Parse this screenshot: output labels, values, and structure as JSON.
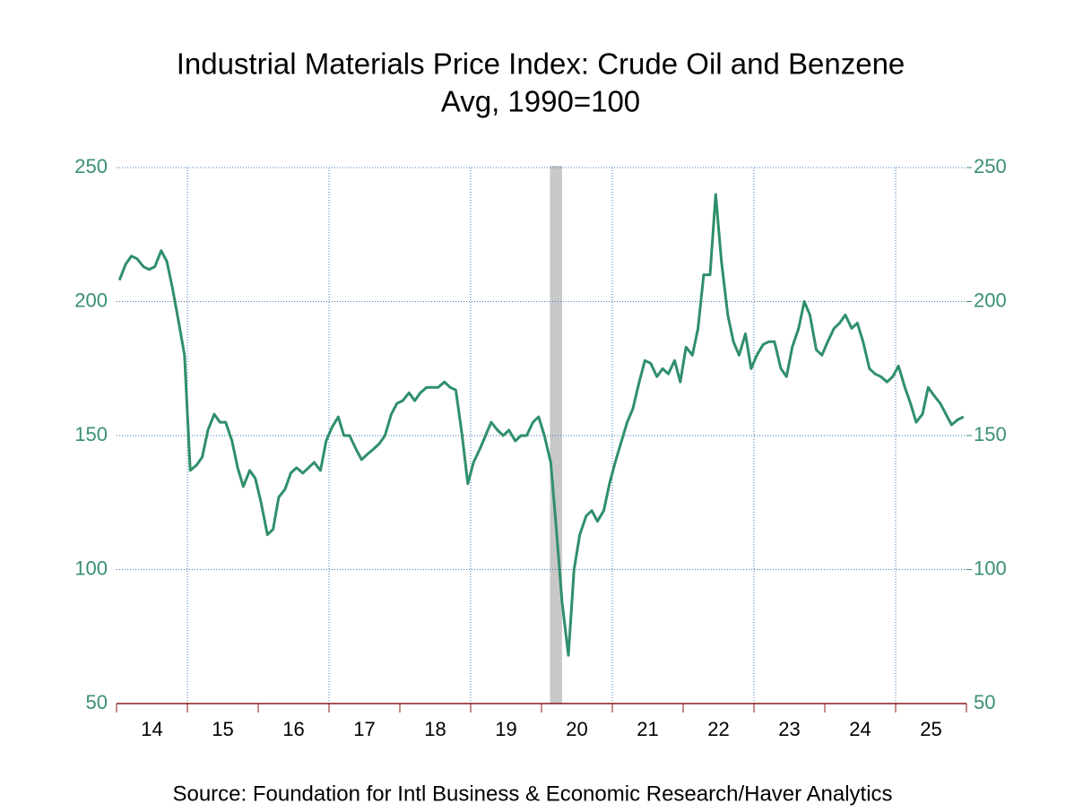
{
  "chart_data": {
    "type": "line",
    "title": "Industrial Materials Price Index: Crude Oil and Benzene",
    "subtitle": "Avg, 1990=100",
    "source": "Source:  Foundation for Intl Business & Economic Research/Haver Analytics",
    "color": "#2f8f6a",
    "grid": true,
    "xlim": [
      2014,
      2026
    ],
    "ylim": [
      50,
      250
    ],
    "yticks": [
      50,
      100,
      150,
      200,
      250
    ],
    "xticks": [
      {
        "value": 2014,
        "label": "14"
      },
      {
        "value": 2015,
        "label": "15"
      },
      {
        "value": 2016,
        "label": "16"
      },
      {
        "value": 2017,
        "label": "17"
      },
      {
        "value": 2018,
        "label": "18"
      },
      {
        "value": 2019,
        "label": "19"
      },
      {
        "value": 2020,
        "label": "20"
      },
      {
        "value": 2021,
        "label": "21"
      },
      {
        "value": 2022,
        "label": "22"
      },
      {
        "value": 2023,
        "label": "23"
      },
      {
        "value": 2024,
        "label": "24"
      },
      {
        "value": 2025,
        "label": "25"
      }
    ],
    "recession": [
      2020.12,
      2020.29
    ],
    "x": [
      2014.04,
      2014.13,
      2014.21,
      2014.29,
      2014.38,
      2014.46,
      2014.54,
      2014.63,
      2014.71,
      2014.79,
      2014.88,
      2014.96,
      2015.04,
      2015.13,
      2015.21,
      2015.29,
      2015.38,
      2015.46,
      2015.54,
      2015.63,
      2015.71,
      2015.79,
      2015.88,
      2015.96,
      2016.04,
      2016.13,
      2016.21,
      2016.29,
      2016.38,
      2016.46,
      2016.54,
      2016.63,
      2016.71,
      2016.79,
      2016.88,
      2016.96,
      2017.04,
      2017.13,
      2017.21,
      2017.29,
      2017.38,
      2017.46,
      2017.54,
      2017.63,
      2017.71,
      2017.79,
      2017.88,
      2017.96,
      2018.04,
      2018.13,
      2018.21,
      2018.29,
      2018.38,
      2018.46,
      2018.54,
      2018.63,
      2018.71,
      2018.79,
      2018.88,
      2018.96,
      2019.04,
      2019.13,
      2019.21,
      2019.29,
      2019.38,
      2019.46,
      2019.54,
      2019.63,
      2019.71,
      2019.79,
      2019.88,
      2019.96,
      2020.04,
      2020.13,
      2020.21,
      2020.29,
      2020.38,
      2020.46,
      2020.54,
      2020.63,
      2020.71,
      2020.79,
      2020.88,
      2020.96,
      2021.04,
      2021.13,
      2021.21,
      2021.29,
      2021.38,
      2021.46,
      2021.54,
      2021.63,
      2021.71,
      2021.79,
      2021.88,
      2021.96,
      2022.04,
      2022.13,
      2022.21,
      2022.29,
      2022.38,
      2022.46,
      2022.54,
      2022.63,
      2022.71,
      2022.79,
      2022.88,
      2022.96,
      2023.04,
      2023.13,
      2023.21,
      2023.29,
      2023.38,
      2023.46,
      2023.54,
      2023.63,
      2023.71,
      2023.79,
      2023.88,
      2023.96,
      2024.04,
      2024.13,
      2024.21,
      2024.29,
      2024.38,
      2024.46,
      2024.54,
      2024.63,
      2024.71,
      2024.79,
      2024.88,
      2024.96,
      2025.04,
      2025.13,
      2025.21,
      2025.29,
      2025.38,
      2025.46,
      2025.54,
      2025.63,
      2025.71,
      2025.79,
      2025.88,
      2025.96
    ],
    "values": [
      208,
      214,
      217,
      216,
      213,
      212,
      213,
      219,
      215,
      205,
      192,
      180,
      137,
      139,
      142,
      152,
      158,
      155,
      155,
      148,
      138,
      131,
      137,
      134,
      125,
      113,
      115,
      127,
      130,
      136,
      138,
      136,
      138,
      140,
      137,
      148,
      153,
      157,
      150,
      150,
      145,
      141,
      143,
      145,
      147,
      150,
      158,
      162,
      163,
      166,
      163,
      166,
      168,
      168,
      168,
      170,
      168,
      167,
      150,
      132,
      140,
      145,
      150,
      155,
      152,
      150,
      152,
      148,
      150,
      150,
      155,
      157,
      150,
      140,
      115,
      88,
      68,
      100,
      113,
      120,
      122,
      118,
      122,
      132,
      140,
      148,
      155,
      160,
      170,
      178,
      177,
      172,
      175,
      173,
      178,
      170,
      183,
      180,
      190,
      210,
      210,
      240,
      215,
      195,
      185,
      180,
      188,
      175,
      180,
      184,
      185,
      185,
      175,
      172,
      183,
      190,
      200,
      195,
      182,
      180,
      185,
      190,
      192,
      195,
      190,
      192,
      185,
      175,
      173,
      172,
      170,
      172,
      176,
      168,
      162,
      155,
      158,
      168,
      165,
      162,
      158,
      154,
      156,
      157
    ]
  }
}
